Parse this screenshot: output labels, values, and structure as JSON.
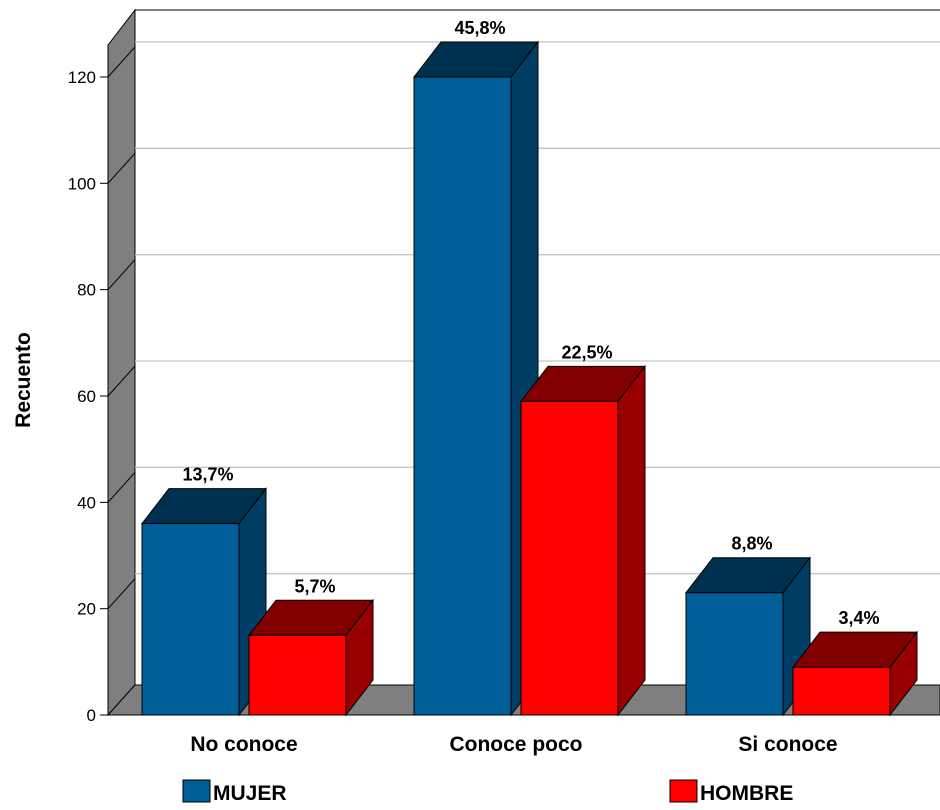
{
  "chart_data": {
    "type": "bar",
    "style": "3d-clustered",
    "ylabel": "Recuento",
    "ylim": [
      0,
      120
    ],
    "yticks": [
      0,
      20,
      40,
      60,
      80,
      100,
      120
    ],
    "grid": true,
    "legend_position": "bottom",
    "categories": [
      "No conoce",
      "Conoce poco",
      "Si conoce"
    ],
    "series": [
      {
        "name": "MUJER",
        "color": "#005f99",
        "values": [
          36,
          120,
          23
        ],
        "labels": [
          "13,7%",
          "45,8%",
          "8,8%"
        ]
      },
      {
        "name": "HOMBRE",
        "color": "#ff0000",
        "values": [
          15,
          59,
          9
        ],
        "labels": [
          "5,7%",
          "22,5%",
          "3,4%"
        ]
      }
    ]
  }
}
